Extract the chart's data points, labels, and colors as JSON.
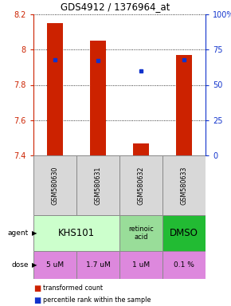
{
  "title": "GDS4912 / 1376964_at",
  "samples": [
    "GSM580630",
    "GSM580631",
    "GSM580632",
    "GSM580633"
  ],
  "bar_bottoms": [
    7.4,
    7.4,
    7.4,
    7.4
  ],
  "bar_tops": [
    8.15,
    8.05,
    7.47,
    7.97
  ],
  "percentile_ranks": [
    68,
    67,
    60,
    68
  ],
  "ylim": [
    7.4,
    8.2
  ],
  "yticks": [
    7.4,
    7.6,
    7.8,
    8.0,
    8.2
  ],
  "ytick_labels": [
    "7.4",
    "7.6",
    "7.8",
    "8",
    "8.2"
  ],
  "percentile_ticks": [
    0,
    25,
    50,
    75,
    100
  ],
  "percentile_labels": [
    "0",
    "25",
    "50",
    "75",
    "100%"
  ],
  "bar_color": "#cc2200",
  "dot_color": "#1133cc",
  "left_tick_color": "#cc2200",
  "right_tick_color": "#1133cc",
  "agent_spans": [
    {
      "cols": [
        0,
        1
      ],
      "label": "KHS101",
      "color": "#ccffcc",
      "fontsize": 8.5
    },
    {
      "cols": [
        2
      ],
      "label": "retinoic\nacid",
      "color": "#99dd99",
      "fontsize": 6
    },
    {
      "cols": [
        3
      ],
      "label": "DMSO",
      "color": "#22bb33",
      "fontsize": 8.5
    }
  ],
  "dose_labels": [
    "5 uM",
    "1.7 uM",
    "1 uM",
    "0.1 %"
  ],
  "dose_color": "#dd88dd",
  "legend_bar_color": "#cc2200",
  "legend_dot_color": "#1133cc",
  "legend_bar_text": "transformed count",
  "legend_dot_text": "percentile rank within the sample"
}
